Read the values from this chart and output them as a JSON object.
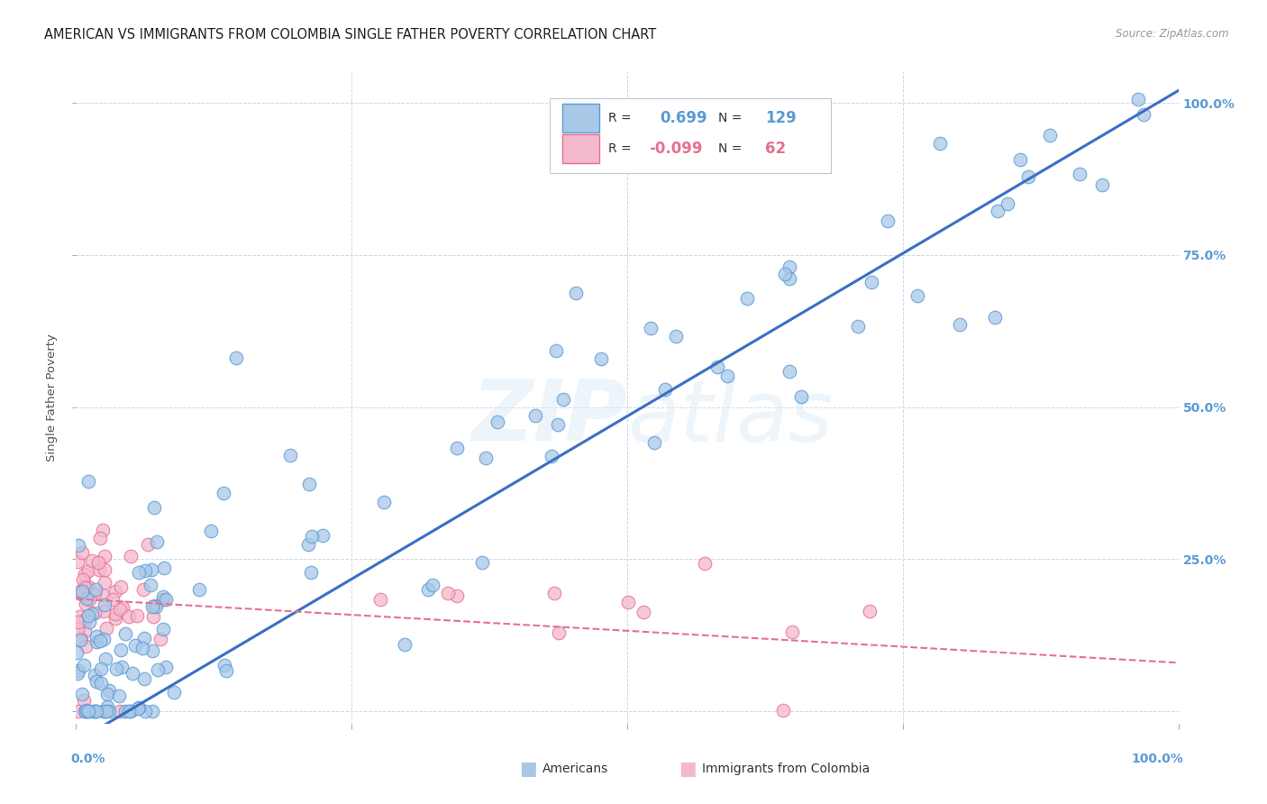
{
  "title": "AMERICAN VS IMMIGRANTS FROM COLOMBIA SINGLE FATHER POVERTY CORRELATION CHART",
  "source": "Source: ZipAtlas.com",
  "ylabel": "Single Father Poverty",
  "watermark": "ZIPatlas",
  "americans": {
    "R": 0.699,
    "N": 129,
    "dot_color": "#a8c8e8",
    "dot_edge": "#5b9bd5",
    "line_color": "#3a6fc4"
  },
  "colombia": {
    "R": -0.099,
    "N": 62,
    "dot_color": "#f4b8cc",
    "dot_edge": "#e87090",
    "line_color": "#e87090"
  },
  "xlim": [
    0.0,
    1.0
  ],
  "ylim": [
    -0.02,
    1.05
  ],
  "grid_color": "#d0d8e8",
  "background_color": "#ffffff",
  "title_fontsize": 10.5,
  "tick_label_color": "#5b9bd5",
  "legend_border_color": "#c0c8d8"
}
